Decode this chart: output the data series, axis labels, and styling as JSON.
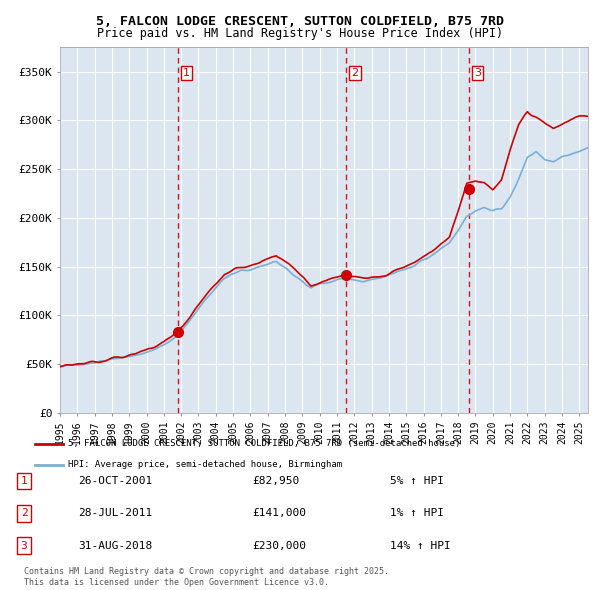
{
  "title_line1": "5, FALCON LODGE CRESCENT, SUTTON COLDFIELD, B75 7RD",
  "title_line2": "Price paid vs. HM Land Registry's House Price Index (HPI)",
  "background_color": "#dce6f0",
  "plot_bg_color": "#dce6f0",
  "outer_bg_color": "#ffffff",
  "red_line_color": "#cc0000",
  "blue_line_color": "#7bafd4",
  "grid_color": "#ffffff",
  "dashed_line_color": "#cc0000",
  "ylim": [
    0,
    375000
  ],
  "yticks": [
    0,
    50000,
    100000,
    150000,
    200000,
    250000,
    300000,
    350000
  ],
  "ytick_labels": [
    "£0",
    "£50K",
    "£100K",
    "£150K",
    "£200K",
    "£250K",
    "£300K",
    "£350K"
  ],
  "sale_dates": [
    "2001-10-26",
    "2011-07-28",
    "2018-08-31"
  ],
  "sale_prices": [
    82950,
    141000,
    230000
  ],
  "sale_labels": [
    "1",
    "2",
    "3"
  ],
  "legend_red_label": "5, FALCON LODGE CRESCENT, SUTTON COLDFIELD, B75 7RD (semi-detached house)",
  "legend_blue_label": "HPI: Average price, semi-detached house, Birmingham",
  "table_rows": [
    [
      "1",
      "26-OCT-2001",
      "£82,950",
      "5% ↑ HPI"
    ],
    [
      "2",
      "28-JUL-2011",
      "£141,000",
      "1% ↑ HPI"
    ],
    [
      "3",
      "31-AUG-2018",
      "£230,000",
      "14% ↑ HPI"
    ]
  ],
  "footnote": "Contains HM Land Registry data © Crown copyright and database right 2025.\nThis data is licensed under the Open Government Licence v3.0.",
  "xstart": 1995.0,
  "xend": 2025.5
}
